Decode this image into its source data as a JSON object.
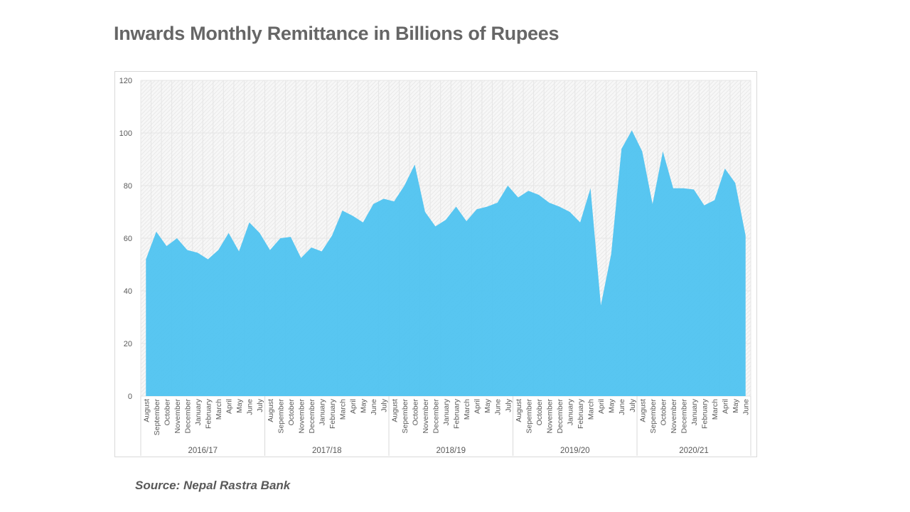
{
  "title": "Inwards Monthly Remittance in Billions of Rupees",
  "source": "Source: Nepal Rastra Bank",
  "colors": {
    "area": "#4fc3f0",
    "grid": "#e6e6e6",
    "text": "#595959"
  },
  "chart_data": {
    "type": "area",
    "title": "Inwards Monthly Remittance in Billions of Rupees",
    "xlabel": "",
    "ylabel": "",
    "ylim": [
      0,
      120
    ],
    "yticks": [
      0,
      20,
      40,
      60,
      80,
      100,
      120
    ],
    "grid": true,
    "legend": "none",
    "groups": [
      {
        "label": "2016/17",
        "months": [
          "August",
          "September",
          "October",
          "November",
          "December",
          "January",
          "February",
          "March",
          "April",
          "May",
          "June",
          "July"
        ],
        "values": [
          52,
          62.5,
          57,
          60,
          55.5,
          54.5,
          52,
          55.5,
          62,
          55,
          66,
          62
        ]
      },
      {
        "label": "2017/18",
        "months": [
          "August",
          "Sepember",
          "October",
          "November",
          "December",
          "January",
          "February",
          "March",
          "April",
          "May",
          "June",
          "July"
        ],
        "values": [
          55.5,
          60,
          60.5,
          52.5,
          56.5,
          55,
          61,
          70.5,
          68.5,
          66,
          73,
          75
        ]
      },
      {
        "label": "2018/19",
        "months": [
          "August",
          "Sepember",
          "October",
          "November",
          "December",
          "January",
          "February",
          "March",
          "April",
          "May",
          "June",
          "July"
        ],
        "values": [
          74,
          80,
          88,
          70,
          64.5,
          67,
          72,
          66.5,
          71,
          72,
          73.5,
          80
        ]
      },
      {
        "label": "2019/20",
        "months": [
          "August",
          "Sepember",
          "October",
          "November",
          "December",
          "January",
          "February",
          "March",
          "April",
          "May",
          "June",
          "July"
        ],
        "values": [
          75.5,
          78,
          76.5,
          73.5,
          72,
          70,
          66,
          79,
          34.5,
          54,
          94,
          101
        ]
      },
      {
        "label": "2020/21",
        "months": [
          "August",
          "Sepember",
          "October",
          "November",
          "December",
          "January",
          "February",
          "March",
          "April",
          "May",
          "June"
        ],
        "values": [
          93,
          73,
          93,
          79,
          79,
          78.5,
          72.5,
          74.5,
          86.5,
          81,
          61
        ]
      }
    ]
  }
}
